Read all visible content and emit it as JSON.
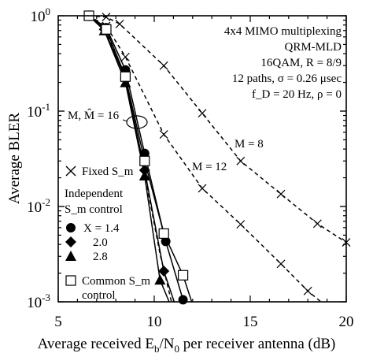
{
  "chart_data": {
    "type": "line",
    "xlabel": "Average received E",
    "xlabel_sub1": "b",
    "xlabel_mid": "/N",
    "xlabel_sub2": "0",
    "xlabel_tail": " per receiver antenna (dB)",
    "ylabel": "Average BLER",
    "xlim": [
      5,
      20
    ],
    "ylim": [
      0.001,
      1
    ],
    "yscale": "log",
    "grid": false,
    "x_ticks": [
      5,
      10,
      15,
      20
    ],
    "y_ticks": [
      {
        "value": 1,
        "base": "10",
        "exp": "0"
      },
      {
        "value": 0.1,
        "base": "10",
        "exp": "-1"
      },
      {
        "value": 0.01,
        "base": "10",
        "exp": "-2"
      },
      {
        "value": 0.001,
        "base": "10",
        "exp": "-3"
      }
    ],
    "info_box": [
      "4x4 MIMO multiplexing",
      "QRM-MLD",
      "16QAM, R = 8/9",
      "12 paths, σ = 0.26 μsec",
      "f_D = 20 Hz, ρ = 0"
    ],
    "annotations": {
      "m8": "M = 8",
      "m12": "M = 12",
      "m16": "M, M̂ = 16"
    },
    "legend": {
      "fixed": "Fixed S_m",
      "independent_line1": "Independent",
      "independent_line2": "S_m control",
      "x_label": "X = 1.4",
      "x2": "2.0",
      "x3": "2.8",
      "common_line1": "Common S_m",
      "common_line2": "control"
    },
    "series": [
      {
        "name": "M = 8",
        "style": "dashed",
        "marker": "x",
        "x": [
          6.6,
          7.5,
          8.2,
          10.5,
          12.5,
          14.5,
          16.6,
          18.5,
          20
        ],
        "y": [
          1.0,
          0.97,
          0.82,
          0.3,
          0.095,
          0.03,
          0.0135,
          0.0066,
          0.0042
        ]
      },
      {
        "name": "M = 12",
        "style": "dashed",
        "marker": "x",
        "x": [
          6.6,
          7.5,
          8.5,
          10.5,
          12.5,
          14.5,
          16.6,
          18.0,
          19.2
        ],
        "y": [
          1.0,
          0.78,
          0.37,
          0.057,
          0.0155,
          0.0065,
          0.0025,
          0.0013,
          0.00082
        ]
      },
      {
        "name": "M = 16 Fixed",
        "style": "dashed",
        "marker": "none",
        "x": [
          6.6,
          7.5,
          8.5,
          9.5,
          10.3,
          11.0
        ],
        "y": [
          1.0,
          0.7,
          0.22,
          0.022,
          0.0032,
          0.00082
        ]
      },
      {
        "name": "X = 1.4",
        "style": "solid",
        "marker": "circle",
        "x": [
          6.6,
          7.5,
          8.5,
          9.5,
          10.6,
          11.5
        ],
        "y": [
          1.0,
          0.75,
          0.27,
          0.036,
          0.0043,
          0.00105
        ]
      },
      {
        "name": "X = 2.0",
        "style": "solid",
        "marker": "diamond",
        "x": [
          6.6,
          7.4,
          8.5,
          9.5,
          10.5,
          11.3
        ],
        "y": [
          1.0,
          0.72,
          0.22,
          0.024,
          0.0021,
          0.0007
        ]
      },
      {
        "name": "X = 2.8",
        "style": "solid",
        "marker": "triangle",
        "x": [
          6.6,
          7.4,
          8.5,
          9.5,
          10.3,
          11.1
        ],
        "y": [
          1.0,
          0.7,
          0.2,
          0.021,
          0.0017,
          0.0007
        ]
      },
      {
        "name": "Common S_m control",
        "style": "solid",
        "marker": "square",
        "x": [
          6.6,
          7.5,
          8.5,
          9.5,
          10.5,
          11.5,
          12.2
        ],
        "y": [
          1.0,
          0.72,
          0.23,
          0.03,
          0.0052,
          0.0019,
          0.0007
        ]
      }
    ]
  }
}
